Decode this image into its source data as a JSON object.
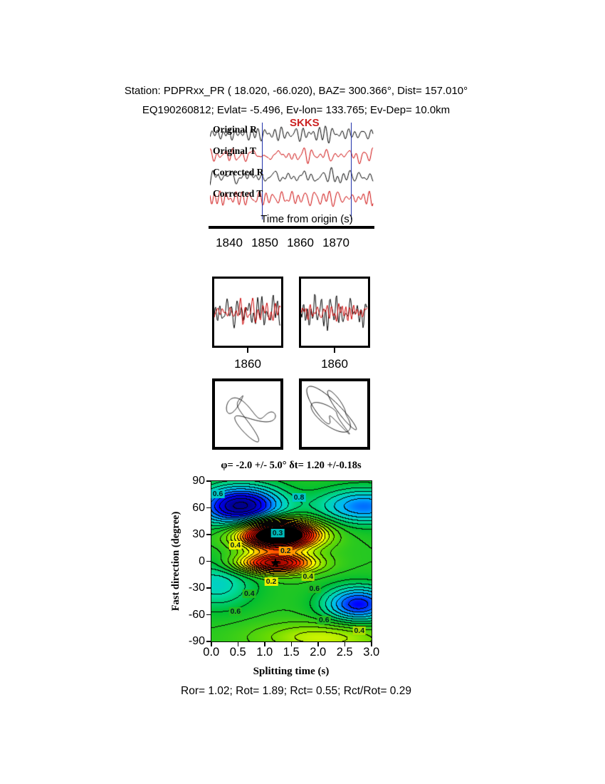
{
  "header": {
    "line1": "Station: PDPRxx_PR ( 18.020, -66.020), BAZ= 300.366°, Dist= 157.010°",
    "line2": "EQ190260812; Evlat= -5.496, Ev-lon= 133.765; Ev-Dep= 10.0km"
  },
  "waveform_panel": {
    "phase_label": "SKKS",
    "phase_color": "#cc2222",
    "traces": [
      {
        "label": "Original R",
        "color": "#000000"
      },
      {
        "label": "Original T",
        "color": "#cc0000"
      },
      {
        "label": "Corrected R",
        "color": "#000000"
      },
      {
        "label": "Corrected T",
        "color": "#cc0000"
      }
    ],
    "axis_label": "Time from origin (s)",
    "ticks": [
      "1840",
      "1850",
      "1860",
      "1870"
    ],
    "time_range": [
      1834,
      1880
    ],
    "window_times": [
      1848.5,
      1873.5
    ],
    "window_color": "#2233aa"
  },
  "zoom_panels": {
    "left_tick": "1860",
    "right_tick": "1860"
  },
  "splitting_map": {
    "title": "φ= -2.0 +/- 5.0° δt= 1.20 +/-0.18s",
    "xlabel": "Splitting time (s)",
    "ylabel": "Fast direction (degree)",
    "x_ticks": [
      "0.0",
      "0.5",
      "1.0",
      "1.5",
      "2.0",
      "2.5",
      "3.0"
    ],
    "y_ticks": [
      "90",
      "60",
      "30",
      "0",
      "-30",
      "-60",
      "-90"
    ],
    "star": {
      "t": 1.2,
      "phi": -2,
      "glyph": "★"
    },
    "contour_labels": [
      {
        "text": "0.6",
        "t": 0.12,
        "phi": 76,
        "bg": "#00c6c6"
      },
      {
        "text": "0.8",
        "t": 1.64,
        "phi": 72,
        "bg": "#00c6c6"
      },
      {
        "text": "0.3",
        "t": 1.24,
        "phi": 32,
        "bg": "#00b8b8"
      },
      {
        "text": "0.2",
        "t": 1.39,
        "phi": 12,
        "bg": "#ff9900"
      },
      {
        "text": "0.4",
        "t": 0.45,
        "phi": 18,
        "bg": "#eeee00"
      },
      {
        "text": "0.2",
        "t": 1.12,
        "phi": -23,
        "bg": "#eeee00"
      },
      {
        "text": "0.4",
        "t": 1.81,
        "phi": -17,
        "bg": "#aadd00"
      },
      {
        "text": "0.6",
        "t": 1.93,
        "phi": -31,
        "bg": "#22bb22"
      },
      {
        "text": "0.4",
        "t": 0.71,
        "phi": -36,
        "bg": "#22bb22"
      },
      {
        "text": "0.6",
        "t": 0.45,
        "phi": -56,
        "bg": "#22bb22"
      },
      {
        "text": "0.6",
        "t": 2.11,
        "phi": -66,
        "bg": "#22bb22"
      },
      {
        "text": "0.4",
        "t": 2.77,
        "phi": -78,
        "bg": "#aadd00"
      }
    ]
  },
  "footer": "Ror= 1.02; Rot= 1.89; Rct= 0.55; Rct/Rot= 0.29",
  "results": {
    "Ror": 1.02,
    "Rot": 1.89,
    "Rct": 0.55,
    "Rct_over_Rot": 0.29
  },
  "chart_data": [
    {
      "type": "line",
      "title": "SKKS phase seismogram traces",
      "xlabel": "Time from origin (s)",
      "x_range": [
        1834,
        1880
      ],
      "x_ticks": [
        1840,
        1850,
        1860,
        1870
      ],
      "series": [
        {
          "name": "Original R",
          "color": "#000000"
        },
        {
          "name": "Original T",
          "color": "#cc0000"
        },
        {
          "name": "Corrected R",
          "color": "#000000"
        },
        {
          "name": "Corrected T",
          "color": "#cc0000"
        }
      ],
      "analysis_window_s": [
        1848.5,
        1873.5
      ],
      "note": "unscaled waveform traces; amplitudes not labeled in figure"
    },
    {
      "type": "line",
      "title": "Windowed R (black) and T (red) waveforms, original (left) and corrected (right)",
      "panels": 2,
      "x_ticks": [
        1860
      ],
      "note": "two boxed overlay panels, each annotated 1860 beneath"
    },
    {
      "type": "scatter",
      "title": "Particle motion hodograms, original (left) and corrected (right)",
      "panels": 2,
      "note": "unlabeled particle-motion trajectories in boxed panels"
    },
    {
      "type": "heatmap",
      "title": "φ= -2.0 +/- 5.0° δt= 1.20 +/-0.18s",
      "xlabel": "Splitting time (s)",
      "ylabel": "Fast direction (degree)",
      "x_range": [
        0,
        3
      ],
      "y_range": [
        -90,
        90
      ],
      "x_ticks": [
        0,
        0.5,
        1,
        1.5,
        2,
        2.5,
        3
      ],
      "y_ticks": [
        90,
        60,
        30,
        0,
        -30,
        -60,
        -90
      ],
      "best_solution": {
        "fast_direction_deg": -2.0,
        "fast_direction_err_deg": 5.0,
        "splitting_time_s": 1.2,
        "splitting_time_err_s": 0.18
      },
      "marker": "black star at (1.2, -2)",
      "contour_level_labels": [
        0.2,
        0.3,
        0.4,
        0.6,
        0.8
      ],
      "colormap": "rainbow (blue=low, red=high, black=clipped maximum)",
      "grid": false,
      "legend_position": "none"
    }
  ],
  "render_params": {
    "wave_seeds": [
      1137,
      2248,
      3359,
      4470
    ],
    "zoom_seeds": [
      [
        517,
        629
      ],
      [
        741,
        853
      ]
    ],
    "hodogram_seeds": [
      9101,
      9202
    ],
    "surface": {
      "base": 0.5,
      "gaussians": [
        {
          "t": 0.55,
          "phi": 62,
          "st": 0.55,
          "sp": 16,
          "amp": -0.52
        },
        {
          "t": 2.75,
          "phi": -48,
          "st": 0.45,
          "sp": 14,
          "amp": -0.38
        },
        {
          "t": 2.85,
          "phi": 62,
          "st": 0.6,
          "sp": 14,
          "amp": -0.3
        },
        {
          "t": 1.2,
          "phi": -2,
          "st": 0.5,
          "sp": 8,
          "amp": 0.6
        },
        {
          "t": 1.25,
          "phi": 30,
          "st": 0.5,
          "sp": 11,
          "amp": 1.0
        },
        {
          "t": 2.1,
          "phi": -85,
          "st": 0.9,
          "sp": 12,
          "amp": 0.18
        },
        {
          "t": 0.1,
          "phi": -25,
          "st": 0.5,
          "sp": 20,
          "amp": -0.18
        }
      ],
      "contour_interval": 0.05,
      "black_threshold": 1.15,
      "colormap_stops": [
        [
          0.0,
          0,
          0,
          140
        ],
        [
          0.12,
          0,
          0,
          255
        ],
        [
          0.25,
          0,
          180,
          255
        ],
        [
          0.35,
          0,
          220,
          170
        ],
        [
          0.45,
          0,
          190,
          50
        ],
        [
          0.6,
          110,
          220,
          0
        ],
        [
          0.72,
          255,
          255,
          0
        ],
        [
          0.83,
          255,
          140,
          0
        ],
        [
          0.93,
          255,
          30,
          0
        ],
        [
          1.15,
          140,
          0,
          0
        ]
      ]
    }
  }
}
